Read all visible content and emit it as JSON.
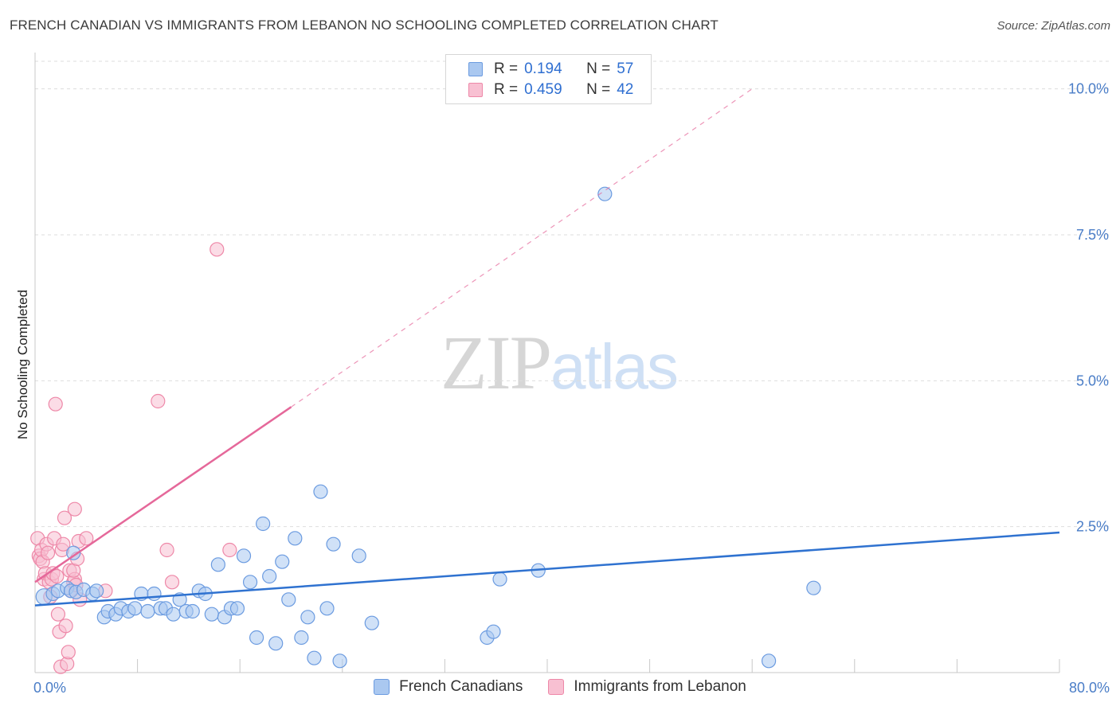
{
  "header": {
    "title": "FRENCH CANADIAN VS IMMIGRANTS FROM LEBANON NO SCHOOLING COMPLETED CORRELATION CHART",
    "source": "Source: ZipAtlas.com"
  },
  "watermark": {
    "zip": "ZIP",
    "atlas": "atlas"
  },
  "legend": {
    "rows": [
      {
        "r_label": "R =",
        "r_value": "0.194",
        "n_label": "N =",
        "n_value": "57"
      },
      {
        "r_label": "R =",
        "r_value": "0.459",
        "n_label": "N =",
        "n_value": "42"
      }
    ]
  },
  "bottom_legend": {
    "french": "French Canadians",
    "lebanon": "Immigrants from Lebanon"
  },
  "colors": {
    "blue_fill": "#aac8f0",
    "blue_stroke": "#6b9be0",
    "blue_line": "#2f72d0",
    "pink_fill": "#f8c0d2",
    "pink_stroke": "#ee88a8",
    "pink_line": "#e5689a",
    "grid": "#dddddd",
    "tick_text": "#4a7dc7"
  },
  "chart_data": {
    "type": "scatter",
    "title": "FRENCH CANADIAN VS IMMIGRANTS FROM LEBANON NO SCHOOLING COMPLETED CORRELATION CHART",
    "xlabel": "",
    "ylabel": "No Schooling Completed",
    "xlim": [
      0,
      80
    ],
    "ylim": [
      0,
      10.5
    ],
    "x_tick_labels": [
      "0.0%",
      "80.0%"
    ],
    "y_ticks": [
      2.5,
      5.0,
      7.5,
      10.0
    ],
    "y_tick_labels": [
      "2.5%",
      "5.0%",
      "7.5%",
      "10.0%"
    ],
    "grid": true,
    "legend_position": "top-center",
    "series": [
      {
        "name": "French Canadians",
        "color": "#aac8f0",
        "R": 0.194,
        "N": 57,
        "trend": {
          "x": [
            0,
            80
          ],
          "y": [
            1.15,
            2.4
          ],
          "dashed_extension": false
        },
        "points": [
          [
            0.7,
            1.3
          ],
          [
            1.4,
            1.35
          ],
          [
            1.8,
            1.4
          ],
          [
            2.5,
            1.45
          ],
          [
            2.8,
            1.4
          ],
          [
            3.2,
            1.38
          ],
          [
            3.8,
            1.42
          ],
          [
            4.5,
            1.35
          ],
          [
            4.8,
            1.4
          ],
          [
            5.4,
            0.95
          ],
          [
            5.7,
            1.05
          ],
          [
            6.3,
            1.0
          ],
          [
            6.7,
            1.1
          ],
          [
            7.3,
            1.05
          ],
          [
            7.8,
            1.1
          ],
          [
            8.3,
            1.35
          ],
          [
            8.8,
            1.05
          ],
          [
            9.3,
            1.35
          ],
          [
            9.8,
            1.1
          ],
          [
            10.2,
            1.1
          ],
          [
            10.8,
            1.0
          ],
          [
            11.3,
            1.25
          ],
          [
            11.8,
            1.05
          ],
          [
            12.3,
            1.05
          ],
          [
            12.8,
            1.4
          ],
          [
            13.3,
            1.35
          ],
          [
            13.8,
            1.0
          ],
          [
            14.3,
            1.85
          ],
          [
            14.8,
            0.95
          ],
          [
            15.3,
            1.1
          ],
          [
            15.8,
            1.1
          ],
          [
            16.3,
            2.0
          ],
          [
            16.8,
            1.55
          ],
          [
            17.3,
            0.6
          ],
          [
            17.8,
            2.55
          ],
          [
            18.3,
            1.65
          ],
          [
            18.8,
            0.5
          ],
          [
            19.3,
            1.9
          ],
          [
            19.8,
            1.25
          ],
          [
            20.3,
            2.3
          ],
          [
            20.8,
            0.6
          ],
          [
            21.3,
            0.95
          ],
          [
            21.8,
            0.25
          ],
          [
            22.3,
            3.1
          ],
          [
            22.8,
            1.1
          ],
          [
            23.3,
            2.2
          ],
          [
            23.8,
            0.2
          ],
          [
            25.3,
            2.0
          ],
          [
            26.3,
            0.85
          ],
          [
            35.3,
            0.6
          ],
          [
            35.8,
            0.7
          ],
          [
            36.3,
            1.6
          ],
          [
            39.3,
            1.75
          ],
          [
            44.5,
            8.2
          ],
          [
            57.3,
            0.2
          ],
          [
            60.8,
            1.45
          ],
          [
            3.0,
            2.05
          ]
        ]
      },
      {
        "name": "Immigrants from Lebanon",
        "color": "#f8c0d2",
        "R": 0.459,
        "N": 42,
        "trend": {
          "x": [
            0,
            20
          ],
          "y": [
            1.55,
            4.55
          ],
          "dashed_to": [
            56,
            10.0
          ]
        },
        "points": [
          [
            0.2,
            2.3
          ],
          [
            0.3,
            2.0
          ],
          [
            0.4,
            1.95
          ],
          [
            0.5,
            2.1
          ],
          [
            0.6,
            1.9
          ],
          [
            0.7,
            1.6
          ],
          [
            0.8,
            1.7
          ],
          [
            0.9,
            2.2
          ],
          [
            1.0,
            2.05
          ],
          [
            1.1,
            1.55
          ],
          [
            1.2,
            1.3
          ],
          [
            1.3,
            1.6
          ],
          [
            1.4,
            1.7
          ],
          [
            1.5,
            2.3
          ],
          [
            1.6,
            4.6
          ],
          [
            1.7,
            1.65
          ],
          [
            1.8,
            1.0
          ],
          [
            1.9,
            0.7
          ],
          [
            2.0,
            0.1
          ],
          [
            2.1,
            2.1
          ],
          [
            2.2,
            2.2
          ],
          [
            2.3,
            2.65
          ],
          [
            2.4,
            0.8
          ],
          [
            2.5,
            0.15
          ],
          [
            2.6,
            0.35
          ],
          [
            2.7,
            1.75
          ],
          [
            2.8,
            1.4
          ],
          [
            3.0,
            1.55
          ],
          [
            3.1,
            1.6
          ],
          [
            3.2,
            1.5
          ],
          [
            3.0,
            1.75
          ],
          [
            3.1,
            2.8
          ],
          [
            3.3,
            1.95
          ],
          [
            3.4,
            2.25
          ],
          [
            3.5,
            1.25
          ],
          [
            4.0,
            2.3
          ],
          [
            5.5,
            1.4
          ],
          [
            9.6,
            4.65
          ],
          [
            10.3,
            2.1
          ],
          [
            10.7,
            1.55
          ],
          [
            14.2,
            7.25
          ],
          [
            15.2,
            2.1
          ]
        ]
      }
    ]
  }
}
